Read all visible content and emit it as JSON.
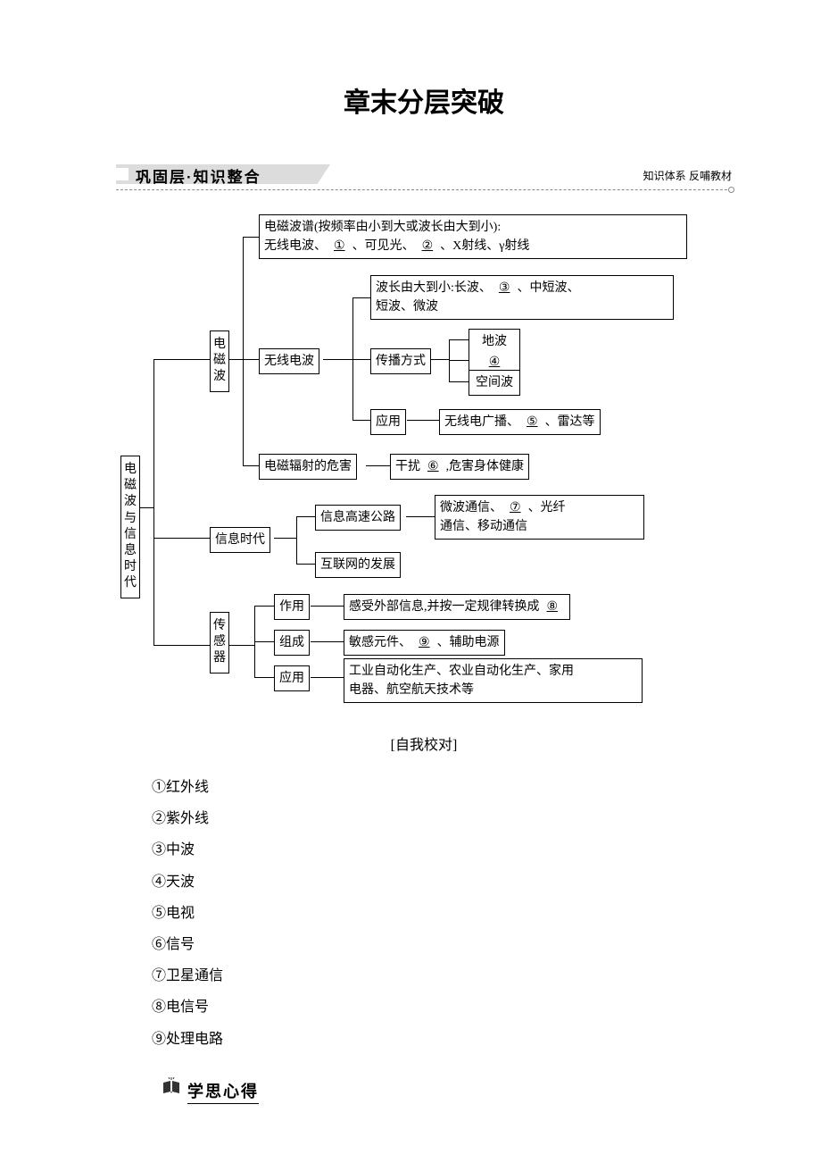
{
  "title": "章末分层突破",
  "section_header": "巩固层·知识整合",
  "section_right": "知识体系 反哺教材",
  "self_check": "[自我校对]",
  "footer": "学思心得",
  "diagram": {
    "root": "电磁波与信息时代",
    "box_top": "电磁波谱(按频率由小到大或波长由大到小):\n无线电波、__①__、可见光、__②__、X射线、γ射线",
    "em_wave": "电\n磁\n波",
    "radio_wave": "无线电波",
    "wavelength": "波长由大到小:长波、__③__、中短波、\n短波、微波",
    "propagation": "传播方式",
    "prop_ground": "地波",
    "prop_blank": "④",
    "prop_space": "空间波",
    "application": "应用",
    "app_content": "无线电广播、__⑤__、雷达等",
    "radiation": "电磁辐射的危害",
    "radiation_content": "干扰__⑥__,危害身体健康",
    "info_era": "信息时代",
    "info_highway": "信息高速公路",
    "info_highway_content": "微波通信、__⑦__、光纤\n通信、移动通信",
    "internet": "互联网的发展",
    "sensor": "传\n感\n器",
    "sensor_func": "作用",
    "sensor_func_content": "感受外部信息,并按一定规律转换成__⑧__",
    "sensor_comp": "组成",
    "sensor_comp_content": "敏感元件、__⑨__、辅助电源",
    "sensor_app": "应用",
    "sensor_app_content": "工业自动化生产、农业自动化生产、家用\n电器、航空航天技术等"
  },
  "answers": [
    "①红外线",
    "②紫外线",
    "③中波",
    "④天波",
    "⑤电视",
    "⑥信号",
    "⑦卫星通信",
    "⑧电信号",
    "⑨处理电路"
  ]
}
